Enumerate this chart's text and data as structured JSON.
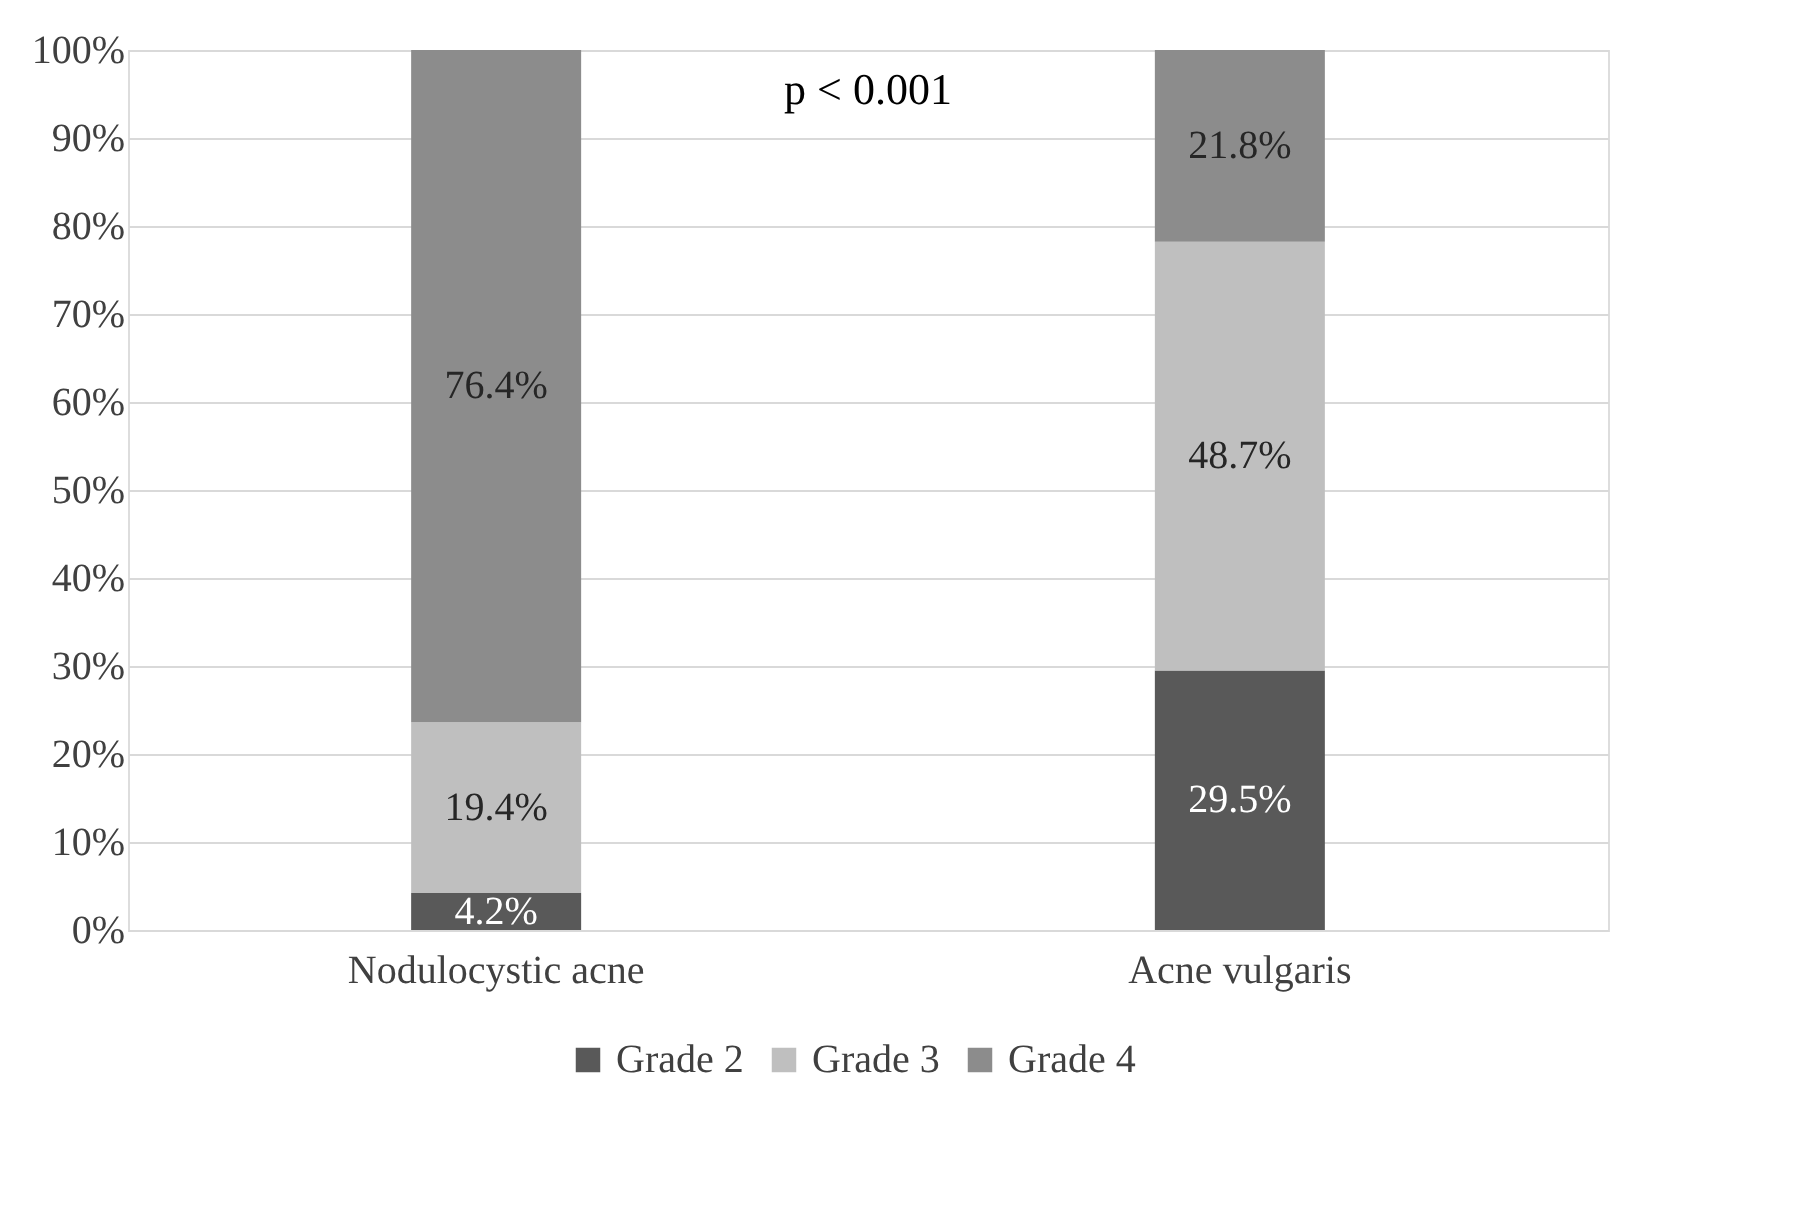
{
  "chart_data": {
    "type": "bar",
    "stacked": true,
    "categories": [
      "Nodulocystic acne",
      "Acne vulgaris"
    ],
    "series": [
      {
        "name": "Grade 2",
        "color": "#595959",
        "values": [
          4.2,
          29.5
        ],
        "value_labels": [
          "4.2%",
          "29.5%"
        ]
      },
      {
        "name": "Grade 3",
        "color": "#bfbfbf",
        "values": [
          19.4,
          48.7
        ],
        "value_labels": [
          "19.4%",
          "48.7%"
        ]
      },
      {
        "name": "Grade 4",
        "color": "#8c8c8c",
        "values": [
          76.4,
          21.8
        ],
        "value_labels": [
          "76.4%",
          "21.8%"
        ]
      }
    ],
    "ylim": [
      0,
      100
    ],
    "yticks": [
      {
        "value": 0,
        "label": "0%"
      },
      {
        "value": 10,
        "label": "10%"
      },
      {
        "value": 20,
        "label": "20%"
      },
      {
        "value": 30,
        "label": "30%"
      },
      {
        "value": 40,
        "label": "40%"
      },
      {
        "value": 50,
        "label": "50%"
      },
      {
        "value": 60,
        "label": "60%"
      },
      {
        "value": 70,
        "label": "70%"
      },
      {
        "value": 80,
        "label": "80%"
      },
      {
        "value": 90,
        "label": "90%"
      },
      {
        "value": 100,
        "label": "100%"
      }
    ],
    "grid": "y",
    "legend": "bottom",
    "annotations": [
      "p < 0.001"
    ]
  }
}
